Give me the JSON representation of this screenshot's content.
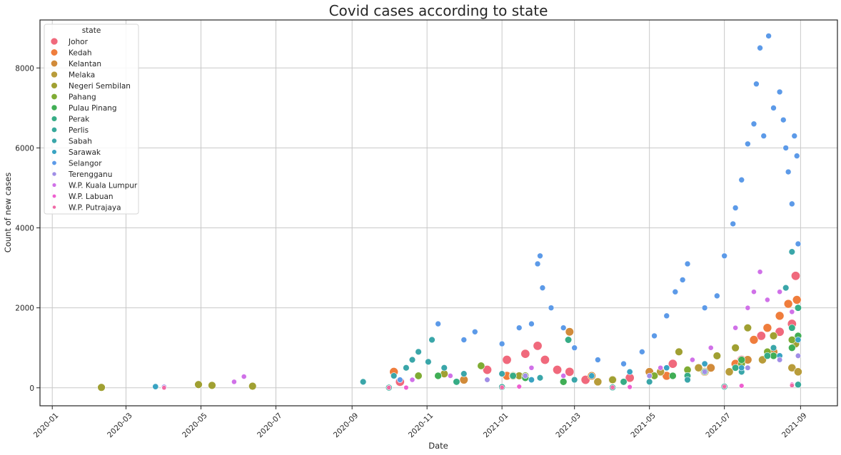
{
  "chart_data": {
    "type": "scatter",
    "title": "Covid cases according to state",
    "xlabel": "Date",
    "ylabel": "Count of new cases",
    "xlim": [
      "2019-12-22",
      "2021-10-01"
    ],
    "ylim": [
      -450,
      9200
    ],
    "x_ticks": [
      "2020-01",
      "2020-03",
      "2020-05",
      "2020-07",
      "2020-09",
      "2020-11",
      "2021-01",
      "2021-03",
      "2021-05",
      "2021-07",
      "2021-09"
    ],
    "y_ticks": [
      0,
      2000,
      4000,
      6000,
      8000
    ],
    "grid": true,
    "legend": {
      "title": "state",
      "placement": "top-left"
    },
    "series": [
      {
        "name": "Johor",
        "color": "#f0697c",
        "points": [
          [
            "2020-10-10",
            150
          ],
          [
            "2020-12-20",
            450
          ],
          [
            "2021-01-05",
            700
          ],
          [
            "2021-01-20",
            850
          ],
          [
            "2021-01-30",
            1050
          ],
          [
            "2021-02-05",
            700
          ],
          [
            "2021-02-15",
            450
          ],
          [
            "2021-02-25",
            400
          ],
          [
            "2021-03-10",
            200
          ],
          [
            "2021-04-15",
            250
          ],
          [
            "2021-05-20",
            600
          ],
          [
            "2021-06-20",
            500
          ],
          [
            "2021-07-15",
            700
          ],
          [
            "2021-07-31",
            1300
          ],
          [
            "2021-08-15",
            1400
          ],
          [
            "2021-08-25",
            1600
          ],
          [
            "2021-08-28",
            2800
          ]
        ]
      },
      {
        "name": "Kedah",
        "color": "#ef7d3c",
        "points": [
          [
            "2020-10-05",
            400
          ],
          [
            "2021-01-05",
            300
          ],
          [
            "2021-04-01",
            200
          ],
          [
            "2021-05-15",
            300
          ],
          [
            "2021-06-15",
            400
          ],
          [
            "2021-07-10",
            600
          ],
          [
            "2021-07-25",
            1200
          ],
          [
            "2021-08-05",
            1500
          ],
          [
            "2021-08-15",
            1800
          ],
          [
            "2021-08-22",
            2100
          ],
          [
            "2021-08-29",
            2200
          ]
        ]
      },
      {
        "name": "Kelantan",
        "color": "#d18b3a",
        "points": [
          [
            "2020-12-01",
            200
          ],
          [
            "2021-02-25",
            1400
          ],
          [
            "2021-03-15",
            300
          ],
          [
            "2021-05-01",
            400
          ],
          [
            "2021-06-20",
            500
          ],
          [
            "2021-07-20",
            700
          ],
          [
            "2021-08-10",
            900
          ],
          [
            "2021-08-28",
            1200
          ]
        ]
      },
      {
        "name": "Melaka",
        "color": "#b89c3a",
        "points": [
          [
            "2021-01-10",
            300
          ],
          [
            "2021-03-20",
            150
          ],
          [
            "2021-05-10",
            400
          ],
          [
            "2021-06-10",
            500
          ],
          [
            "2021-07-05",
            400
          ],
          [
            "2021-08-01",
            700
          ],
          [
            "2021-08-25",
            500
          ],
          [
            "2021-08-30",
            400
          ]
        ]
      },
      {
        "name": "Negeri Sembilan",
        "color": "#a0a032",
        "points": [
          [
            "2020-02-10",
            10
          ],
          [
            "2020-04-29",
            80
          ],
          [
            "2020-05-10",
            60
          ],
          [
            "2020-06-12",
            40
          ],
          [
            "2020-11-15",
            350
          ],
          [
            "2021-01-15",
            300
          ],
          [
            "2021-04-01",
            200
          ],
          [
            "2021-05-25",
            900
          ],
          [
            "2021-06-25",
            800
          ],
          [
            "2021-07-10",
            1000
          ],
          [
            "2021-07-20",
            1500
          ],
          [
            "2021-08-10",
            1300
          ],
          [
            "2021-08-28",
            1100
          ]
        ]
      },
      {
        "name": "Pahang",
        "color": "#7fac34",
        "points": [
          [
            "2020-10-25",
            300
          ],
          [
            "2020-12-15",
            550
          ],
          [
            "2021-01-20",
            300
          ],
          [
            "2021-05-05",
            300
          ],
          [
            "2021-06-01",
            450
          ],
          [
            "2021-07-15",
            600
          ],
          [
            "2021-08-05",
            900
          ],
          [
            "2021-08-25",
            1200
          ]
        ]
      },
      {
        "name": "Pulau Pinang",
        "color": "#40ae55",
        "points": [
          [
            "2020-11-10",
            300
          ],
          [
            "2021-01-20",
            250
          ],
          [
            "2021-02-20",
            150
          ],
          [
            "2021-05-20",
            300
          ],
          [
            "2021-06-15",
            400
          ],
          [
            "2021-07-15",
            700
          ],
          [
            "2021-08-10",
            800
          ],
          [
            "2021-08-25",
            1000
          ],
          [
            "2021-08-30",
            1300
          ]
        ]
      },
      {
        "name": "Perak",
        "color": "#36ac85",
        "points": [
          [
            "2020-11-25",
            150
          ],
          [
            "2021-01-10",
            300
          ],
          [
            "2021-02-24",
            1200
          ],
          [
            "2021-04-10",
            150
          ],
          [
            "2021-06-01",
            300
          ],
          [
            "2021-07-10",
            500
          ],
          [
            "2021-08-05",
            800
          ],
          [
            "2021-08-25",
            1500
          ],
          [
            "2021-08-30",
            2000
          ]
        ]
      },
      {
        "name": "Perlis",
        "color": "#38a99b",
        "points": [
          [
            "2020-10-01",
            5
          ],
          [
            "2021-01-01",
            20
          ],
          [
            "2021-04-01",
            10
          ],
          [
            "2021-07-01",
            30
          ],
          [
            "2021-08-30",
            80
          ]
        ]
      },
      {
        "name": "Sabah",
        "color": "#3aa6a9",
        "points": [
          [
            "2020-09-10",
            150
          ],
          [
            "2020-10-05",
            300
          ],
          [
            "2020-10-15",
            500
          ],
          [
            "2020-10-20",
            700
          ],
          [
            "2020-10-25",
            900
          ],
          [
            "2020-11-02",
            650
          ],
          [
            "2020-11-05",
            1200
          ],
          [
            "2020-11-15",
            500
          ],
          [
            "2020-12-01",
            350
          ],
          [
            "2021-01-01",
            350
          ],
          [
            "2021-02-01",
            250
          ],
          [
            "2021-03-01",
            200
          ],
          [
            "2021-05-01",
            150
          ],
          [
            "2021-06-01",
            200
          ],
          [
            "2021-07-15",
            400
          ],
          [
            "2021-08-10",
            1000
          ],
          [
            "2021-08-20",
            2500
          ],
          [
            "2021-08-25",
            3400
          ]
        ]
      },
      {
        "name": "Sarawak",
        "color": "#39a3c2",
        "points": [
          [
            "2020-03-25",
            30
          ],
          [
            "2021-01-25",
            200
          ],
          [
            "2021-03-15",
            300
          ],
          [
            "2021-04-15",
            400
          ],
          [
            "2021-05-15",
            500
          ],
          [
            "2021-06-15",
            600
          ],
          [
            "2021-07-15",
            500
          ],
          [
            "2021-08-15",
            800
          ],
          [
            "2021-08-30",
            1200
          ]
        ]
      },
      {
        "name": "Selangor",
        "color": "#5c9ae8",
        "points": [
          [
            "2020-10-10",
            200
          ],
          [
            "2020-11-10",
            1600
          ],
          [
            "2020-12-01",
            1200
          ],
          [
            "2020-12-10",
            1400
          ],
          [
            "2021-01-01",
            1100
          ],
          [
            "2021-01-15",
            1500
          ],
          [
            "2021-01-25",
            1600
          ],
          [
            "2021-01-30",
            3100
          ],
          [
            "2021-02-01",
            3300
          ],
          [
            "2021-02-03",
            2500
          ],
          [
            "2021-02-10",
            2000
          ],
          [
            "2021-02-20",
            1500
          ],
          [
            "2021-03-01",
            1000
          ],
          [
            "2021-03-20",
            700
          ],
          [
            "2021-04-10",
            600
          ],
          [
            "2021-04-25",
            900
          ],
          [
            "2021-05-05",
            1300
          ],
          [
            "2021-05-15",
            1800
          ],
          [
            "2021-05-22",
            2400
          ],
          [
            "2021-05-28",
            2700
          ],
          [
            "2021-06-01",
            3100
          ],
          [
            "2021-06-15",
            2000
          ],
          [
            "2021-06-25",
            2300
          ],
          [
            "2021-07-01",
            3300
          ],
          [
            "2021-07-08",
            4100
          ],
          [
            "2021-07-10",
            4500
          ],
          [
            "2021-07-15",
            5200
          ],
          [
            "2021-07-20",
            6100
          ],
          [
            "2021-07-25",
            6600
          ],
          [
            "2021-07-27",
            7600
          ],
          [
            "2021-07-30",
            8500
          ],
          [
            "2021-08-02",
            6300
          ],
          [
            "2021-08-06",
            8800
          ],
          [
            "2021-08-10",
            7000
          ],
          [
            "2021-08-15",
            7400
          ],
          [
            "2021-08-18",
            6700
          ],
          [
            "2021-08-20",
            6000
          ],
          [
            "2021-08-22",
            5400
          ],
          [
            "2021-08-25",
            4600
          ],
          [
            "2021-08-27",
            6300
          ],
          [
            "2021-08-29",
            5800
          ],
          [
            "2021-08-30",
            3600
          ]
        ]
      },
      {
        "name": "Terengganu",
        "color": "#a08ee6",
        "points": [
          [
            "2020-04-01",
            20
          ],
          [
            "2020-12-20",
            200
          ],
          [
            "2021-01-20",
            300
          ],
          [
            "2021-05-01",
            300
          ],
          [
            "2021-06-15",
            400
          ],
          [
            "2021-07-20",
            500
          ],
          [
            "2021-08-15",
            700
          ],
          [
            "2021-08-30",
            800
          ]
        ]
      },
      {
        "name": "W.P. Kuala Lumpur",
        "color": "#d071e8",
        "points": [
          [
            "2020-05-28",
            150
          ],
          [
            "2020-06-05",
            280
          ],
          [
            "2020-10-20",
            200
          ],
          [
            "2020-11-20",
            300
          ],
          [
            "2021-01-25",
            500
          ],
          [
            "2021-02-20",
            300
          ],
          [
            "2021-05-10",
            500
          ],
          [
            "2021-06-05",
            700
          ],
          [
            "2021-06-20",
            1000
          ],
          [
            "2021-07-10",
            1500
          ],
          [
            "2021-07-20",
            2000
          ],
          [
            "2021-07-25",
            2400
          ],
          [
            "2021-07-30",
            2900
          ],
          [
            "2021-08-05",
            2200
          ],
          [
            "2021-08-15",
            2400
          ],
          [
            "2021-08-25",
            1900
          ]
        ]
      },
      {
        "name": "W.P. Labuan",
        "color": "#ee5fd0",
        "points": [
          [
            "2020-10-15",
            5
          ],
          [
            "2021-01-15",
            30
          ],
          [
            "2021-04-15",
            20
          ],
          [
            "2021-07-15",
            50
          ],
          [
            "2021-08-25",
            80
          ]
        ]
      },
      {
        "name": "W.P. Putrajaya",
        "color": "#f06aa6",
        "points": [
          [
            "2020-04-01",
            2
          ],
          [
            "2020-10-01",
            5
          ],
          [
            "2021-01-01",
            10
          ],
          [
            "2021-04-01",
            10
          ],
          [
            "2021-07-01",
            30
          ],
          [
            "2021-08-25",
            60
          ]
        ]
      }
    ]
  }
}
